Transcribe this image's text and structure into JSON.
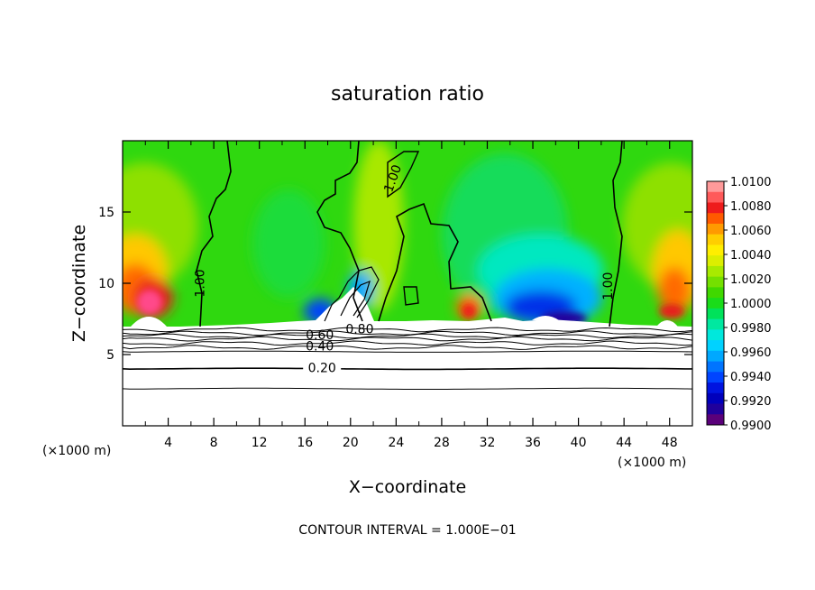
{
  "chart_data": {
    "type": "heatmap",
    "title": "saturation ratio",
    "xlabel": "X−coordinate",
    "ylabel": "Z−coordinate",
    "x_unit_left": "(×1000 m)",
    "x_unit_right": "(×1000 m)",
    "footer": "CONTOUR INTERVAL = 1.000E−01",
    "xlim": [
      0,
      50
    ],
    "ylim": [
      0,
      20
    ],
    "x_ticks": [
      4,
      8,
      12,
      16,
      20,
      24,
      28,
      32,
      36,
      40,
      44,
      48
    ],
    "y_ticks": [
      5,
      10,
      15
    ],
    "colorbar": {
      "levels": [
        "1.0100",
        "1.0080",
        "1.0060",
        "1.0040",
        "1.0020",
        "1.0000",
        "0.9980",
        "0.9960",
        "0.9940",
        "0.9920",
        "0.9900"
      ],
      "colors": [
        "#ff9a9a",
        "#ff5a5a",
        "#ee1c1c",
        "#ff5a00",
        "#ff9a00",
        "#ffce00",
        "#ffee00",
        "#dcee00",
        "#a8ea00",
        "#74e000",
        "#40d800",
        "#1adc1a",
        "#00e25a",
        "#00e8a0",
        "#00e8dc",
        "#00d2ff",
        "#00a8ff",
        "#0074ff",
        "#0044ff",
        "#0014e0",
        "#0000bc",
        "#20009c",
        "#5a007a"
      ]
    },
    "contour_labels": [
      {
        "text": "1.00",
        "x": 7.0,
        "z": 10.0
      },
      {
        "text": "1.00",
        "x": 42.8,
        "z": 9.8
      },
      {
        "text": "1.00",
        "x": 23.9,
        "z": 17.3
      },
      {
        "text": "0.60",
        "x": 17.3,
        "z": 6.2
      },
      {
        "text": "0.80",
        "x": 20.8,
        "z": 6.6
      },
      {
        "text": "0.40",
        "x": 17.3,
        "z": 5.4
      },
      {
        "text": "0.20",
        "x": 17.5,
        "z": 3.9
      }
    ],
    "contour_lines_z": [
      6.75,
      6.5,
      6.3,
      6.1,
      5.8,
      5.5,
      5.2,
      4.0,
      2.6
    ]
  }
}
